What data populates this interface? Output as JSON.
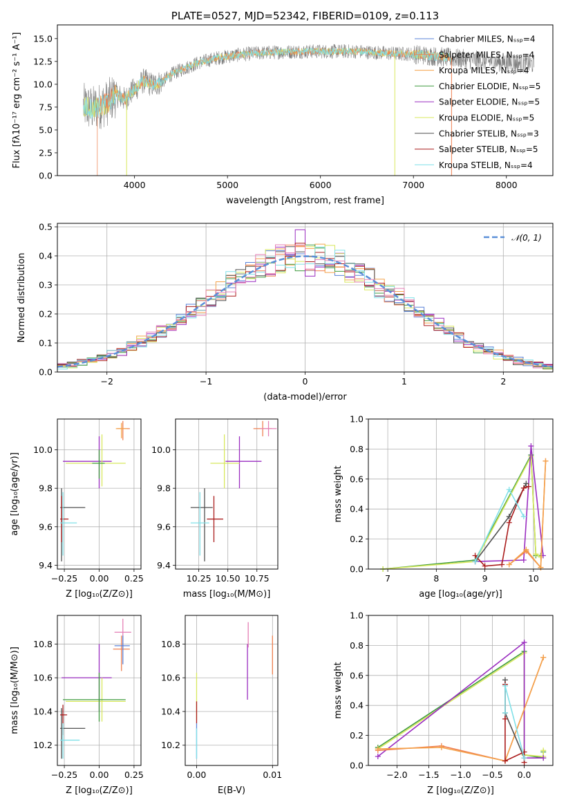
{
  "figure_title": "PLATE=0527, MJD=52342, FIBERID=0109, z=0.113",
  "colors": {
    "chab_miles": "#5a82d8",
    "salp_miles": "#ef7f4f",
    "krou_miles": "#f4a24a",
    "chab_elodie": "#3f9b3f",
    "salp_elodie": "#9a2cc0",
    "krou_elodie": "#d8e85c",
    "chab_stelib": "#505050",
    "salp_stelib": "#aa1b1b",
    "krou_stelib": "#7fe0e8",
    "pink": "#e57fb5",
    "gaussian": "#5a8fd8"
  },
  "chart_data": [
    {
      "id": "spectrum",
      "type": "line",
      "title": "PLATE=0527, MJD=52342, FIBERID=0109, z=0.113",
      "xlabel": "wavelength [Angstrom, rest frame]",
      "ylabel": "Flux [fλ10⁻¹⁷ erg cm⁻² s⁻¹ A⁻¹]",
      "xlim": [
        3170,
        8500
      ],
      "ylim": [
        0,
        16.5
      ],
      "xticks": [
        4000,
        5000,
        6000,
        7000,
        8000
      ],
      "yticks": [
        0.0,
        2.5,
        5.0,
        7.5,
        10.0,
        12.5,
        15.0
      ],
      "grid": false,
      "legend": "top-right",
      "legend_entries": [
        "Chabrier MILES, Nₛₛₚ=4",
        "Salpeter MILES, Nₛₛₚ=4",
        "Kroupa MILES, Nₛₛₚ=4",
        "Chabrier ELODIE, Nₛₛₚ=5",
        "Salpeter ELODIE, Nₛₛₚ=5",
        "Kroupa ELODIE, Nₛₛₚ=5",
        "Chabrier STELIB, Nₛₛₚ=3",
        "Salpeter STELIB, Nₛₛₚ=5",
        "Kroupa STELIB, Nₛₛₚ=4"
      ],
      "legend_colors": [
        "chab_miles",
        "salp_miles",
        "krou_miles",
        "chab_elodie",
        "salp_elodie",
        "krou_elodie",
        "chab_stelib",
        "salp_stelib",
        "krou_stelib"
      ],
      "continuum_x": [
        3450,
        3550,
        3620,
        3700,
        3800,
        3900,
        3950,
        4000,
        4100,
        4200,
        4300,
        4400,
        4500,
        4700,
        4900,
        5100,
        5300,
        5500,
        5800,
        6100,
        6400,
        6700,
        7000,
        7200,
        7400,
        7700,
        8000,
        8300
      ],
      "continuum_y": [
        7.6,
        7.3,
        7.6,
        7.9,
        8.9,
        8.3,
        9.0,
        9.4,
        10.4,
        9.9,
        10.3,
        11.1,
        11.6,
        12.4,
        12.9,
        13.2,
        13.4,
        13.5,
        13.6,
        13.6,
        13.6,
        13.4,
        13.3,
        13.1,
        12.9,
        12.6,
        12.4,
        12.2
      ],
      "model_xmin": 3450,
      "data_xmax": 8300,
      "model_xmax": 7400,
      "dips": [
        {
          "x": 3915,
          "color": "krou_elodie"
        },
        {
          "x": 6800,
          "color": "krou_elodie"
        },
        {
          "x": 7410,
          "color": "salp_miles"
        }
      ],
      "left_cut": {
        "x": 3600,
        "color": "salp_miles"
      }
    },
    {
      "id": "residuals",
      "type": "step",
      "xlabel": "(data-model)/error",
      "ylabel": "Normed distribution",
      "xlim": [
        -2.5,
        2.5
      ],
      "ylim": [
        0,
        0.512
      ],
      "xticks": [
        -2,
        -1,
        0,
        1,
        2
      ],
      "yticks": [
        0.0,
        0.1,
        0.2,
        0.3,
        0.4,
        0.5
      ],
      "grid": true,
      "legend": "top-right",
      "legend_entry": "𝒩(0, 1)",
      "bin_width": 0.1,
      "x0": -2.5,
      "n_bins": 50,
      "hist_colors": [
        "chab_miles",
        "salp_miles",
        "krou_miles",
        "chab_elodie",
        "salp_elodie",
        "krou_elodie",
        "chab_stelib",
        "salp_stelib",
        "krou_stelib",
        "pink"
      ],
      "highlight_bins": [
        {
          "x": -0.25,
          "h": 0.43
        },
        {
          "x": -0.05,
          "h": 0.49
        },
        {
          "x": 0.05,
          "h": 0.33
        }
      ]
    },
    {
      "id": "age_vs_Z",
      "type": "errorbar",
      "xlabel": "Z [log₁₀(Z/Z⊙)]",
      "ylabel": "age  [log₁₀(age/yr)]",
      "xlim": [
        -0.3,
        0.3
      ],
      "ylim": [
        9.38,
        10.16
      ],
      "xticks": [
        -0.25,
        0.0,
        0.25
      ],
      "xticklabels": [
        "−0.25",
        "0.00",
        "0.25"
      ],
      "yticks": [
        9.4,
        9.6,
        9.8,
        10.0
      ],
      "yticklabels": [
        "9.4",
        "9.6",
        "9.8",
        "10.0"
      ],
      "grid": true,
      "points": [
        {
          "c": "salp_elodie",
          "x": 0.0,
          "y": 9.94,
          "xlo": -0.26,
          "xhi": 0.09,
          "ylo": 9.8,
          "yhi": 10.07
        },
        {
          "c": "krou_elodie",
          "x": 0.02,
          "y": 9.93,
          "xlo": -0.24,
          "xhi": 0.19,
          "ylo": 9.81,
          "yhi": 10.08
        },
        {
          "c": "chab_elodie",
          "x": 0.0,
          "y": 9.93,
          "xlo": -0.05,
          "xhi": 0.04,
          "ylo": 9.85,
          "yhi": 10.0
        },
        {
          "c": "salp_miles",
          "x": 0.17,
          "y": 10.11,
          "xlo": 0.13,
          "xhi": 0.22,
          "ylo": 10.05,
          "yhi": 10.15
        },
        {
          "c": "krou_miles",
          "x": 0.16,
          "y": 10.11,
          "xlo": 0.12,
          "xhi": 0.2,
          "ylo": 10.06,
          "yhi": 10.14
        },
        {
          "c": "chab_stelib",
          "x": -0.27,
          "y": 9.7,
          "xlo": -0.28,
          "xhi": -0.1,
          "ylo": 9.42,
          "yhi": 9.8
        },
        {
          "c": "salp_stelib",
          "x": -0.27,
          "y": 9.64,
          "xlo": -0.28,
          "xhi": -0.22,
          "ylo": 9.52,
          "yhi": 9.76
        },
        {
          "c": "krou_stelib",
          "x": -0.26,
          "y": 9.62,
          "xlo": -0.28,
          "xhi": -0.16,
          "ylo": 9.45,
          "yhi": 9.78
        }
      ]
    },
    {
      "id": "age_vs_mass",
      "type": "errorbar",
      "xlabel": "mass [log₁₀(M/M⊙)]",
      "ylabel": "",
      "xlim": [
        10.05,
        10.93
      ],
      "ylim": [
        9.38,
        10.16
      ],
      "xticks": [
        10.25,
        10.5,
        10.75
      ],
      "xticklabels": [
        "10.25",
        "10.50",
        "10.75"
      ],
      "yticks": [
        9.4,
        9.6,
        9.8,
        10.0
      ],
      "yticklabels": [
        "9.4",
        "9.6",
        "9.8",
        "10.0"
      ],
      "grid": true,
      "points": [
        {
          "c": "salp_elodie",
          "x": 10.6,
          "y": 9.94,
          "xlo": 10.48,
          "xhi": 10.79,
          "ylo": 9.8,
          "yhi": 10.07
        },
        {
          "c": "krou_elodie",
          "x": 10.47,
          "y": 9.93,
          "xlo": 10.35,
          "xhi": 10.6,
          "ylo": 9.8,
          "yhi": 10.08
        },
        {
          "c": "salp_miles",
          "x": 10.8,
          "y": 10.11,
          "xlo": 10.72,
          "xhi": 10.88,
          "ylo": 10.07,
          "yhi": 10.15
        },
        {
          "c": "pink",
          "x": 10.85,
          "y": 10.11,
          "xlo": 10.78,
          "xhi": 10.92,
          "ylo": 10.07,
          "yhi": 10.15
        },
        {
          "c": "chab_stelib",
          "x": 10.3,
          "y": 9.7,
          "xlo": 10.18,
          "xhi": 10.37,
          "ylo": 9.42,
          "yhi": 9.8
        },
        {
          "c": "salp_stelib",
          "x": 10.38,
          "y": 9.64,
          "xlo": 10.32,
          "xhi": 10.46,
          "ylo": 9.52,
          "yhi": 9.76
        },
        {
          "c": "krou_stelib",
          "x": 10.26,
          "y": 9.62,
          "xlo": 10.18,
          "xhi": 10.34,
          "ylo": 9.45,
          "yhi": 9.78
        }
      ]
    },
    {
      "id": "weight_vs_age",
      "type": "line",
      "xlabel": "age  [log₁₀(age/yr)]",
      "ylabel": "mass weight",
      "xlim": [
        6.6,
        10.4
      ],
      "ylim": [
        0,
        1
      ],
      "xticks": [
        7,
        8,
        9,
        10
      ],
      "xticklabels": [
        "7",
        "8",
        "9",
        "10"
      ],
      "yticks": [
        0.0,
        0.2,
        0.4,
        0.6,
        0.8,
        1.0
      ],
      "yticklabels": [
        "0.0",
        "0.2",
        "0.4",
        "0.6",
        "0.8",
        "1.0"
      ],
      "grid": true,
      "series": [
        {
          "c": "chab_elodie",
          "x": [
            6.9,
            8.8,
            9.95,
            10.05,
            10.15
          ],
          "y": [
            0.0,
            0.06,
            0.76,
            0.09,
            0.09
          ]
        },
        {
          "c": "krou_elodie",
          "x": [
            6.9,
            8.8,
            9.95,
            10.05,
            10.15
          ],
          "y": [
            0.0,
            0.05,
            0.75,
            0.1,
            0.08
          ]
        },
        {
          "c": "salp_elodie",
          "x": [
            8.8,
            9.8,
            9.95,
            10.2
          ],
          "y": [
            0.05,
            0.06,
            0.82,
            0.09
          ]
        },
        {
          "c": "chab_stelib",
          "x": [
            8.8,
            9.5,
            9.85
          ],
          "y": [
            0.05,
            0.35,
            0.57
          ]
        },
        {
          "c": "salp_stelib",
          "x": [
            8.8,
            9.0,
            9.35,
            9.5,
            9.8,
            9.9
          ],
          "y": [
            0.09,
            0.02,
            0.03,
            0.31,
            0.54,
            0.55
          ]
        },
        {
          "c": "krou_stelib",
          "x": [
            8.8,
            9.5,
            9.8
          ],
          "y": [
            0.05,
            0.53,
            0.35
          ]
        },
        {
          "c": "salp_miles",
          "x": [
            9.5,
            9.85,
            10.15,
            10.25
          ],
          "y": [
            0.03,
            0.12,
            0.01,
            0.72
          ]
        },
        {
          "c": "krou_miles",
          "x": [
            9.5,
            9.85,
            10.15,
            10.25
          ],
          "y": [
            0.03,
            0.13,
            0.01,
            0.72
          ]
        }
      ]
    },
    {
      "id": "mass_vs_Z",
      "type": "errorbar",
      "xlabel": "Z [log₁₀(Z/Z⊙)]",
      "ylabel": "mass [log₁₀(M/M⊙)]",
      "xlim": [
        -0.3,
        0.3
      ],
      "ylim": [
        10.08,
        10.97
      ],
      "xticks": [
        -0.25,
        0.0,
        0.25
      ],
      "xticklabels": [
        "−0.25",
        "0.00",
        "0.25"
      ],
      "yticks": [
        10.2,
        10.4,
        10.6,
        10.8
      ],
      "yticklabels": [
        "10.2",
        "10.4",
        "10.6",
        "10.8"
      ],
      "grid": true,
      "points": [
        {
          "c": "pink",
          "x": 0.17,
          "y": 10.87,
          "xlo": 0.11,
          "xhi": 0.23,
          "ylo": 10.78,
          "yhi": 10.95
        },
        {
          "c": "salp_miles",
          "x": 0.16,
          "y": 10.77,
          "xlo": 0.1,
          "xhi": 0.22,
          "ylo": 10.64,
          "yhi": 10.85
        },
        {
          "c": "chab_miles",
          "x": 0.17,
          "y": 10.79,
          "xlo": 0.11,
          "xhi": 0.22,
          "ylo": 10.68,
          "yhi": 10.85
        },
        {
          "c": "salp_elodie",
          "x": 0.0,
          "y": 10.6,
          "xlo": -0.27,
          "xhi": 0.09,
          "ylo": 10.4,
          "yhi": 10.8
        },
        {
          "c": "krou_elodie",
          "x": 0.02,
          "y": 10.46,
          "xlo": -0.24,
          "xhi": 0.19,
          "ylo": 10.34,
          "yhi": 10.6
        },
        {
          "c": "chab_elodie",
          "x": 0.0,
          "y": 10.47,
          "xlo": -0.26,
          "xhi": 0.19,
          "ylo": 10.34,
          "yhi": 10.63
        },
        {
          "c": "chab_stelib",
          "x": -0.27,
          "y": 10.3,
          "xlo": -0.28,
          "xhi": -0.1,
          "ylo": 10.12,
          "yhi": 10.42
        },
        {
          "c": "salp_stelib",
          "x": -0.26,
          "y": 10.38,
          "xlo": -0.28,
          "xhi": -0.23,
          "ylo": 10.26,
          "yhi": 10.44
        },
        {
          "c": "krou_stelib",
          "x": -0.26,
          "y": 10.23,
          "xlo": -0.28,
          "xhi": -0.14,
          "ylo": 10.12,
          "yhi": 10.33
        }
      ]
    },
    {
      "id": "mass_vs_EBV",
      "type": "errorbar",
      "xlabel": "E(B-V)",
      "ylabel": "",
      "xlim": [
        -0.0015,
        0.0107
      ],
      "ylim": [
        10.08,
        10.97
      ],
      "xticks": [
        0.0,
        0.01
      ],
      "xticklabels": [
        "0.00",
        "0.01"
      ],
      "yticks": [
        10.2,
        10.4,
        10.6,
        10.8
      ],
      "yticklabels": [
        "10.2",
        "10.4",
        "10.6",
        "10.8"
      ],
      "grid": true,
      "points": [
        {
          "c": "krou_elodie",
          "x": 0.0,
          "y": 10.5,
          "xlo": 0.0,
          "xhi": 0.0,
          "ylo": 10.35,
          "yhi": 10.63
        },
        {
          "c": "salp_stelib",
          "x": 0.0,
          "y": 10.4,
          "xlo": 0.0,
          "xhi": 0.0,
          "ylo": 10.33,
          "yhi": 10.46
        },
        {
          "c": "chab_miles",
          "x": 0.0,
          "y": 10.22,
          "xlo": 0.0,
          "xhi": 0.0,
          "ylo": 10.12,
          "yhi": 10.33
        },
        {
          "c": "krou_stelib",
          "x": 0.0,
          "y": 10.2,
          "xlo": 0.0,
          "xhi": 0.0,
          "ylo": 10.12,
          "yhi": 10.3
        },
        {
          "c": "salp_elodie",
          "x": 0.0067,
          "y": 10.6,
          "xlo": 0.0067,
          "xhi": 0.0067,
          "ylo": 10.47,
          "yhi": 10.8
        },
        {
          "c": "pink",
          "x": 0.0068,
          "y": 10.87,
          "xlo": 0.0068,
          "xhi": 0.0068,
          "ylo": 10.78,
          "yhi": 10.93
        },
        {
          "c": "salp_miles",
          "x": 0.01,
          "y": 10.74,
          "xlo": 0.01,
          "xhi": 0.01,
          "ylo": 10.62,
          "yhi": 10.85
        }
      ]
    },
    {
      "id": "weight_vs_Z",
      "type": "line",
      "xlabel": "Z [log₁₀(Z/Z⊙)]",
      "ylabel": "mass weight",
      "xlim": [
        -2.45,
        0.45
      ],
      "ylim": [
        0,
        1
      ],
      "xticks": [
        -2.0,
        -1.5,
        -1.0,
        -0.5,
        0.0
      ],
      "xticklabels": [
        "−2.0",
        "−1.5",
        "−1.0",
        "−0.5",
        "0.0"
      ],
      "yticks": [
        0.0,
        0.2,
        0.4,
        0.6,
        0.8,
        1.0
      ],
      "yticklabels": [
        "0.0",
        "0.2",
        "0.4",
        "0.6",
        "0.8",
        "1.0"
      ],
      "grid": true,
      "series": [
        {
          "c": "chab_elodie",
          "x": [
            -2.3,
            0.0,
            0.0,
            0.3,
            0.3
          ],
          "y": [
            0.12,
            0.76,
            0.07,
            0.05,
            0.09
          ]
        },
        {
          "c": "krou_elodie",
          "x": [
            -2.3,
            0.0,
            0.0,
            0.3,
            0.3
          ],
          "y": [
            0.11,
            0.75,
            0.07,
            0.06,
            0.1
          ]
        },
        {
          "c": "salp_elodie",
          "x": [
            -2.3,
            0.0,
            0.0,
            0.3
          ],
          "y": [
            0.06,
            0.82,
            0.05,
            0.05
          ]
        },
        {
          "c": "salp_miles",
          "x": [
            -2.3,
            -1.3,
            -0.3,
            0.3
          ],
          "y": [
            0.1,
            0.13,
            0.03,
            0.72
          ]
        },
        {
          "c": "krou_miles",
          "x": [
            -2.3,
            -1.3,
            -0.3,
            0.3
          ],
          "y": [
            0.11,
            0.12,
            0.03,
            0.72
          ]
        },
        {
          "c": "chab_stelib",
          "x": [
            -0.3,
            -0.3,
            0.0
          ],
          "y": [
            0.57,
            0.35,
            0.05
          ]
        },
        {
          "c": "salp_stelib",
          "x": [
            -0.3,
            -0.3,
            -0.3,
            0.0,
            0.0
          ],
          "y": [
            0.54,
            0.31,
            0.03,
            0.09,
            0.02
          ]
        },
        {
          "c": "krou_stelib",
          "x": [
            -0.3,
            -0.3,
            0.0
          ],
          "y": [
            0.35,
            0.53,
            0.05
          ]
        }
      ]
    }
  ]
}
